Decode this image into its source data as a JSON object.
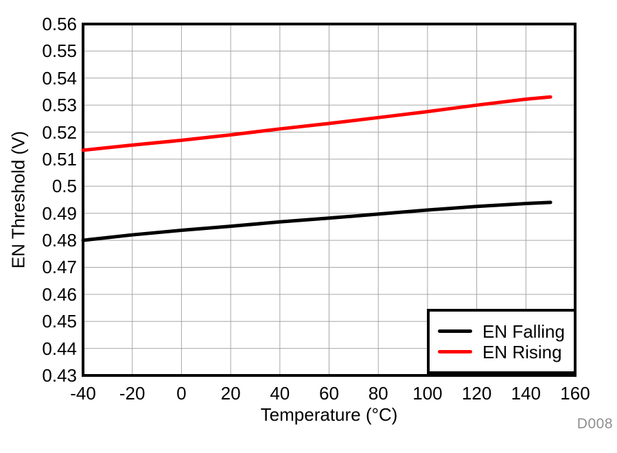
{
  "watermark": "D008",
  "colors": {
    "background": "#ffffff",
    "grid": "#a6a6a6",
    "axis": "#000000",
    "watermark": "#8f8f8f"
  },
  "chart_data": {
    "type": "line",
    "title": "",
    "xlabel": "Temperature (°C)",
    "ylabel": "EN Threshold (V)",
    "xlim": [
      -40,
      160
    ],
    "ylim": [
      0.43,
      0.56
    ],
    "grid": true,
    "legend_position": "bottom-right-inside",
    "x_ticks": {
      "values": [
        -40,
        -20,
        0,
        20,
        40,
        60,
        80,
        100,
        120,
        140,
        160
      ],
      "labels": [
        "-40",
        "-20",
        "0",
        "20",
        "40",
        "60",
        "80",
        "100",
        "120",
        "140",
        "160"
      ]
    },
    "y_ticks": {
      "values": [
        0.43,
        0.44,
        0.45,
        0.46,
        0.47,
        0.48,
        0.49,
        0.5,
        0.51,
        0.52,
        0.53,
        0.54,
        0.55,
        0.56
      ],
      "labels": [
        "0.43",
        "0.44",
        "0.45",
        "0.46",
        "0.47",
        "0.48",
        "0.49",
        "0.5",
        "0.51",
        "0.52",
        "0.53",
        "0.54",
        "0.55",
        "0.56"
      ]
    },
    "x": [
      -40,
      -20,
      0,
      20,
      40,
      60,
      80,
      100,
      120,
      140,
      150
    ],
    "series": [
      {
        "name": "EN Falling",
        "color": "#000000",
        "values": [
          0.48,
          0.482,
          0.4837,
          0.4852,
          0.4868,
          0.4882,
          0.4897,
          0.4912,
          0.4925,
          0.4936,
          0.494
        ]
      },
      {
        "name": "EN Rising",
        "color": "#ff0000",
        "values": [
          0.5133,
          0.5152,
          0.517,
          0.519,
          0.5212,
          0.5232,
          0.5254,
          0.5276,
          0.53,
          0.5322,
          0.533
        ]
      }
    ]
  }
}
